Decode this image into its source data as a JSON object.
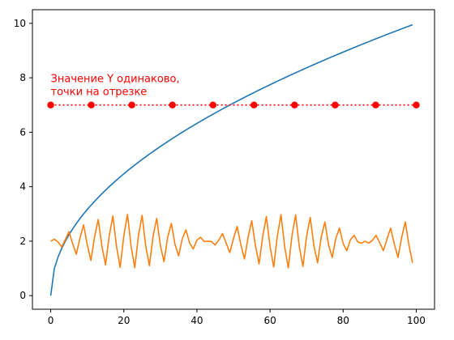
{
  "chart_data": {
    "type": "line",
    "title": "",
    "xlabel": "",
    "ylabel": "",
    "xlim": [
      -5,
      105
    ],
    "ylim": [
      -0.5,
      10.5
    ],
    "xticks": [
      0,
      20,
      40,
      60,
      80,
      100
    ],
    "yticks": [
      0,
      2,
      4,
      6,
      8,
      10
    ],
    "grid": false,
    "series": [
      {
        "color": "#1f77b4",
        "style": "solid",
        "formula": "y = sqrt(x), x = 0..99",
        "x": [
          0,
          1,
          2,
          4,
          6,
          9,
          12,
          16,
          20,
          25,
          30,
          36,
          42,
          49,
          56,
          64,
          72,
          81,
          90,
          99
        ],
        "y": [
          0,
          1.0,
          1.41,
          2.0,
          2.45,
          3.0,
          3.46,
          4.0,
          4.47,
          5.0,
          5.48,
          6.0,
          6.48,
          7.0,
          7.48,
          8.0,
          8.49,
          9.0,
          9.49,
          9.95
        ]
      },
      {
        "color": "#ff7f0e",
        "style": "solid",
        "formula": "y = 2 + sin(x*pi/2 + 0.2) * sin(x*pi/43), x = 0..99",
        "x_range": [
          0,
          99
        ],
        "y_range": [
          1,
          3
        ]
      },
      {
        "color": "#ff0000",
        "style": "dotted",
        "marker": "circle",
        "x": [
          0,
          11.1,
          22.2,
          33.3,
          44.4,
          55.6,
          66.7,
          77.8,
          88.9,
          100
        ],
        "y": [
          7,
          7,
          7,
          7,
          7,
          7,
          7,
          7,
          7,
          7
        ]
      }
    ],
    "annotations": [
      {
        "text_lines": [
          "Значение Y одинаково,",
          "точки на отрезке"
        ],
        "color": "#ff0000",
        "x": 0,
        "y": 7.3
      }
    ]
  }
}
